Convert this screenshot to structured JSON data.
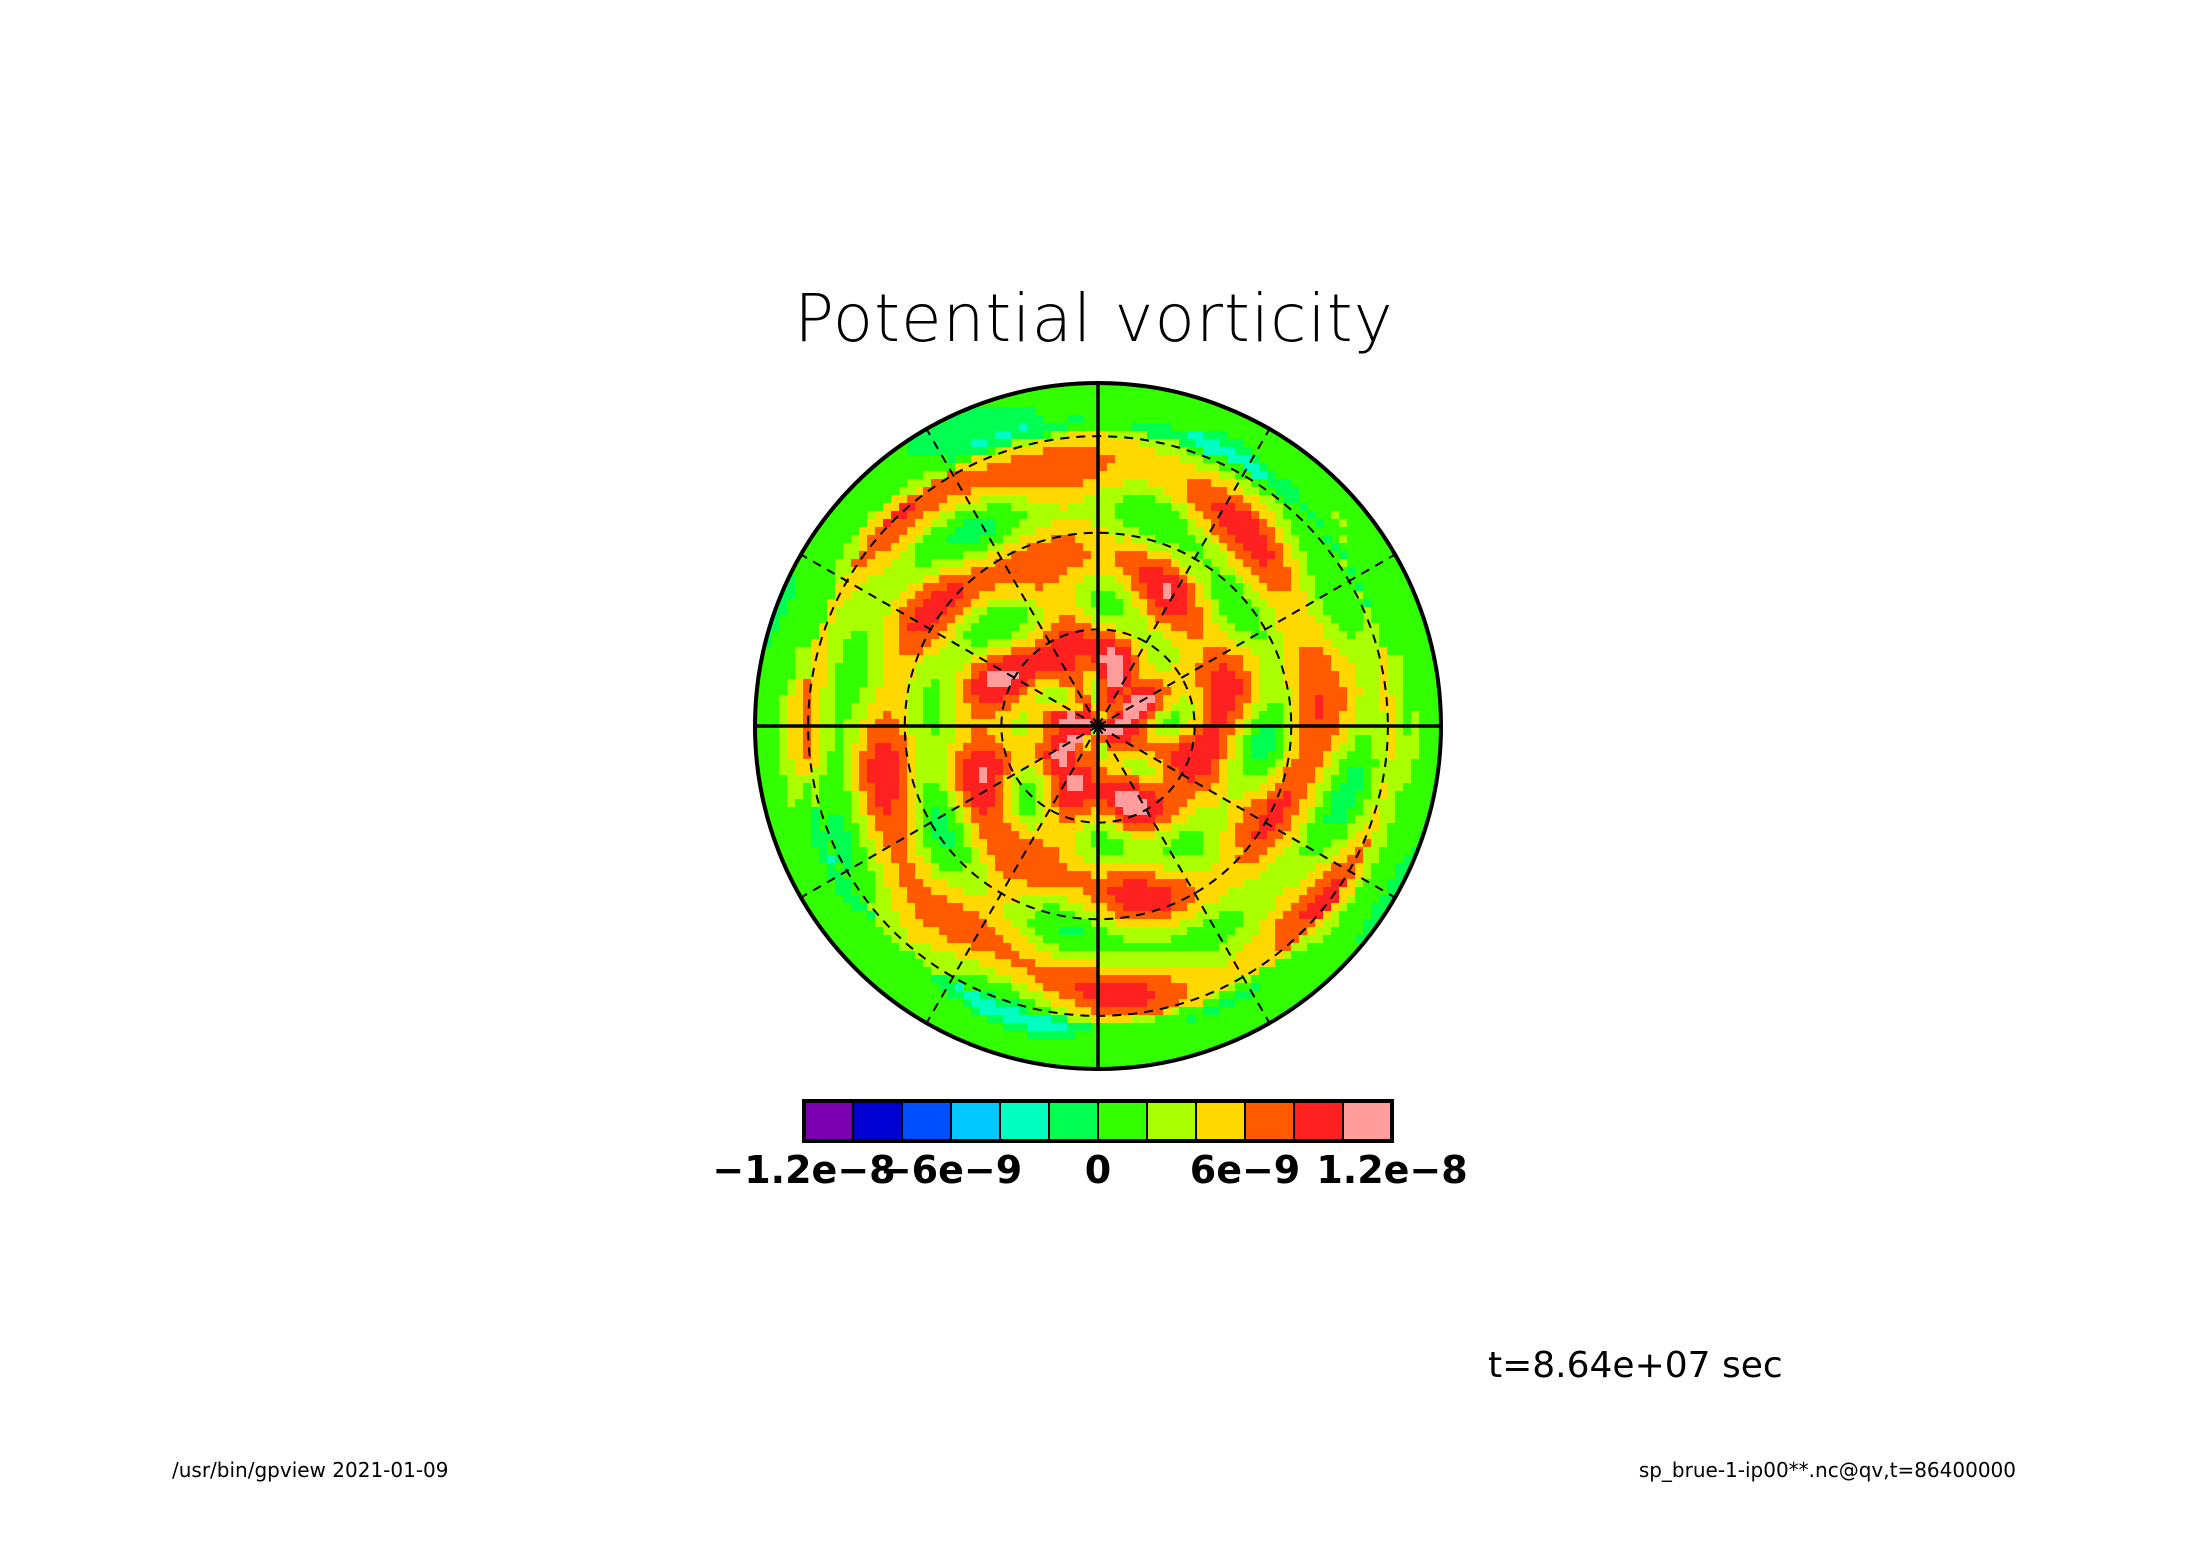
{
  "title": "Potential vorticity",
  "time_label": "t=8.64e+07 sec",
  "footer": {
    "left": "/usr/bin/gpview  2021-01-09",
    "right": "sp_brue-1-ip00**.nc@qv,t=86400000"
  },
  "chart_data": {
    "type": "heatmap",
    "projection": "polar stereographic",
    "variable": "qv",
    "title": "Potential vorticity",
    "colorbar": {
      "levels": [
        -1.2e-08,
        -1e-08,
        -8e-09,
        -6e-09,
        -4e-09,
        -2e-09,
        0,
        2e-09,
        4e-09,
        6e-09,
        8e-09,
        1e-08,
        1.2e-08
      ],
      "colors": [
        "#7a00b0",
        "#0000d2",
        "#0050ff",
        "#00c8ff",
        "#00ffc0",
        "#00ff50",
        "#32ff00",
        "#aaff00",
        "#ffd800",
        "#ff5a00",
        "#ff2020",
        "#ff9c9c"
      ],
      "tick_labels": [
        "-1.2e-8",
        "-6e-9",
        "0",
        "6e-9",
        "1.2e-8"
      ],
      "tick_values": [
        -1.2e-08,
        -6e-09,
        0,
        6e-09,
        1.2e-08
      ]
    },
    "approx_field": {
      "description_levels_by_radius": "outer ring 0..2e-9, mid 2e-9..6e-9, core 6e-9..1.0e-8 with scattered maxima up to 1.2e-8",
      "outer_value": 1e-09,
      "mid_value": 4e-09,
      "core_value": 7e-09
    },
    "grid": {
      "meridian_spacing_deg": 30,
      "solid_meridians_deg": [
        0,
        90,
        180,
        270
      ],
      "latitude_circles": 3
    }
  }
}
